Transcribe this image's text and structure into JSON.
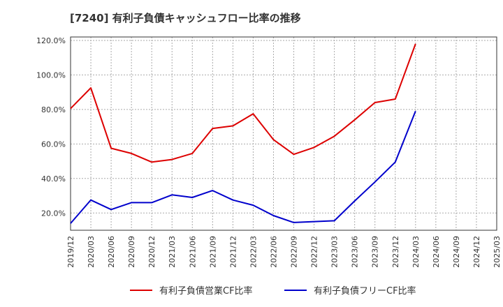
{
  "chart_data": {
    "type": "line",
    "title": "[7240]  有利子負債キャッシュフロー比率の推移",
    "x_ticks": [
      "2019/12",
      "2020/03",
      "2020/06",
      "2020/09",
      "2020/12",
      "2021/03",
      "2021/06",
      "2021/09",
      "2021/12",
      "2022/03",
      "2022/06",
      "2022/09",
      "2022/12",
      "2023/03",
      "2023/06",
      "2023/09",
      "2023/12",
      "2024/03",
      "2024/06",
      "2024/09",
      "2024/12",
      "2025/03"
    ],
    "y_ticks": [
      "20.0%",
      "40.0%",
      "60.0%",
      "80.0%",
      "100.0%",
      "120.0%"
    ],
    "ylim": [
      10,
      122
    ],
    "grid": true,
    "legend_position": "bottom",
    "series": [
      {
        "name": "有利子負債営業CF比率",
        "color": "#dd0000",
        "values": [
          [
            "2019/12",
            80.5
          ],
          [
            "2020/03",
            92.5
          ],
          [
            "2020/06",
            57.5
          ],
          [
            "2020/09",
            54.5
          ],
          [
            "2020/12",
            49.5
          ],
          [
            "2021/03",
            51.0
          ],
          [
            "2021/06",
            54.5
          ],
          [
            "2021/09",
            69.0
          ],
          [
            "2021/12",
            70.5
          ],
          [
            "2022/03",
            77.5
          ],
          [
            "2022/06",
            62.5
          ],
          [
            "2022/09",
            54.0
          ],
          [
            "2022/12",
            58.0
          ],
          [
            "2023/03",
            64.5
          ],
          [
            "2023/06",
            74.0
          ],
          [
            "2023/09",
            84.0
          ],
          [
            "2023/12",
            86.0
          ],
          [
            "2024/03",
            118.0
          ]
        ]
      },
      {
        "name": "有利子負債フリーCF比率",
        "color": "#0000cc",
        "values": [
          [
            "2019/12",
            14.0
          ],
          [
            "2020/03",
            27.5
          ],
          [
            "2020/06",
            22.0
          ],
          [
            "2020/09",
            26.0
          ],
          [
            "2020/12",
            26.0
          ],
          [
            "2021/03",
            30.5
          ],
          [
            "2021/06",
            29.0
          ],
          [
            "2021/09",
            33.0
          ],
          [
            "2021/12",
            27.5
          ],
          [
            "2022/03",
            24.5
          ],
          [
            "2022/06",
            18.5
          ],
          [
            "2022/09",
            14.5
          ],
          [
            "2022/12",
            15.0
          ],
          [
            "2023/03",
            15.5
          ],
          [
            "2023/06",
            27.0
          ],
          [
            "2023/09",
            38.0
          ],
          [
            "2023/12",
            49.5
          ],
          [
            "2024/03",
            79.0
          ]
        ]
      }
    ]
  }
}
